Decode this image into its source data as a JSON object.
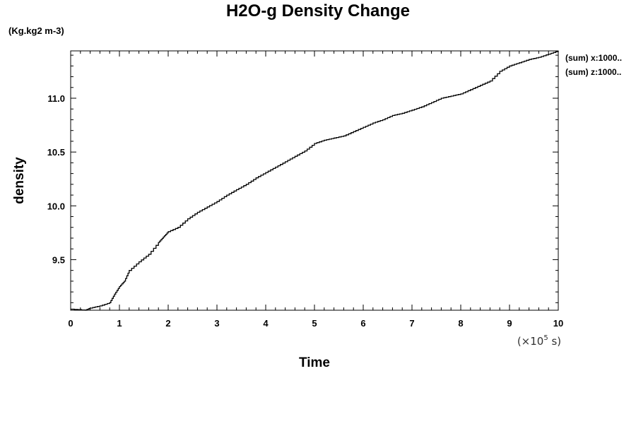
{
  "chart_data": {
    "type": "line",
    "title": "H2O-g Density Change",
    "units_label": "(Kg.kg2 m-3)",
    "xlabel": "Time",
    "ylabel": "density",
    "x_multiplier": {
      "prefix": "(×10",
      "exponent": "5",
      "suffix": " s)"
    },
    "xlim": [
      0,
      10
    ],
    "ylim": [
      9.03,
      11.44
    ],
    "x_ticks": [
      "0",
      "1",
      "2",
      "3",
      "4",
      "5",
      "6",
      "7",
      "8",
      "9",
      "10"
    ],
    "y_ticks": [
      "9.5",
      "10.0",
      "10.5",
      "11.0"
    ],
    "legend_position": "top-right outside",
    "series": [
      {
        "name": "(sum) x:1000..",
        "color": "#000000",
        "x": [
          0,
          0.3,
          0.4,
          0.6,
          0.8,
          0.9,
          1.0,
          1.1,
          1.2,
          1.4,
          1.6,
          1.8,
          1.9,
          2.0,
          2.2,
          2.4,
          2.6,
          2.8,
          3.0,
          3.2,
          3.4,
          3.6,
          3.8,
          4.0,
          4.2,
          4.4,
          4.6,
          4.8,
          5.0,
          5.2,
          5.4,
          5.6,
          5.8,
          6.0,
          6.2,
          6.4,
          6.6,
          6.8,
          7.0,
          7.2,
          7.4,
          7.6,
          7.8,
          8.0,
          8.2,
          8.4,
          8.6,
          8.8,
          9.0,
          9.2,
          9.4,
          9.6,
          9.8,
          10.0
        ],
        "y": [
          9.04,
          9.03,
          9.05,
          9.07,
          9.1,
          9.18,
          9.25,
          9.3,
          9.4,
          9.48,
          9.55,
          9.66,
          9.71,
          9.76,
          9.8,
          9.88,
          9.94,
          9.99,
          10.04,
          10.1,
          10.15,
          10.2,
          10.26,
          10.31,
          10.36,
          10.41,
          10.46,
          10.51,
          10.58,
          10.61,
          10.63,
          10.65,
          10.69,
          10.73,
          10.77,
          10.8,
          10.84,
          10.86,
          10.89,
          10.92,
          10.96,
          11.0,
          11.02,
          11.04,
          11.08,
          11.12,
          11.16,
          11.25,
          11.3,
          11.33,
          11.36,
          11.38,
          11.41,
          11.44
        ]
      },
      {
        "name": "(sum) z:1000..",
        "color": "#000000",
        "x": [],
        "y": []
      }
    ]
  }
}
